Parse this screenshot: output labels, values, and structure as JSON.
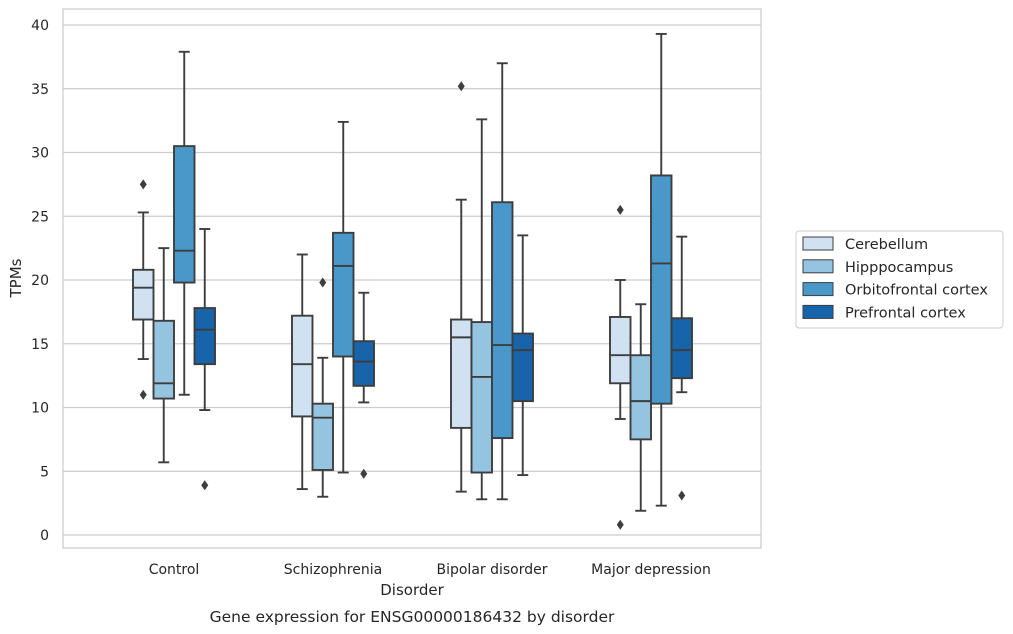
{
  "caption": "Gene expression for ENSG00000186432 by disorder",
  "chart_data": {
    "type": "box",
    "xlabel": "Disorder",
    "ylabel": "TPMs",
    "ylim": [
      -1,
      41
    ],
    "yticks": [
      0,
      5,
      10,
      15,
      20,
      25,
      30,
      35,
      40
    ],
    "grid": "horizontal",
    "legend_position": "right",
    "categories": [
      "Control",
      "Schizophrenia",
      "Bipolar disorder",
      "Major depression"
    ],
    "series": [
      {
        "name": "Cerebellum",
        "color": "#d0e1f2",
        "boxes": [
          {
            "whislo": 13.8,
            "q1": 16.9,
            "med": 19.4,
            "q3": 20.8,
            "whishi": 25.3,
            "fliers": [
              27.5,
              11.0
            ]
          },
          {
            "whislo": 3.6,
            "q1": 9.3,
            "med": 13.4,
            "q3": 17.2,
            "whishi": 22.0,
            "fliers": []
          },
          {
            "whislo": 3.4,
            "q1": 8.4,
            "med": 15.5,
            "q3": 16.9,
            "whishi": 26.3,
            "fliers": [
              35.2
            ]
          },
          {
            "whislo": 9.1,
            "q1": 11.9,
            "med": 14.1,
            "q3": 17.1,
            "whishi": 20.0,
            "fliers": [
              25.5,
              0.8
            ]
          }
        ]
      },
      {
        "name": "Hipppocampus",
        "color": "#94c4df",
        "boxes": [
          {
            "whislo": 5.7,
            "q1": 10.7,
            "med": 11.9,
            "q3": 16.8,
            "whishi": 22.5,
            "fliers": []
          },
          {
            "whislo": 3.0,
            "q1": 5.1,
            "med": 9.2,
            "q3": 10.3,
            "whishi": 13.9,
            "fliers": [
              19.8
            ]
          },
          {
            "whislo": 2.8,
            "q1": 4.9,
            "med": 12.4,
            "q3": 16.7,
            "whishi": 32.6,
            "fliers": []
          },
          {
            "whislo": 1.9,
            "q1": 7.5,
            "med": 10.5,
            "q3": 14.1,
            "whishi": 18.1,
            "fliers": []
          }
        ]
      },
      {
        "name": "Orbitofrontal cortex",
        "color": "#4a98c9",
        "boxes": [
          {
            "whislo": 11.0,
            "q1": 19.8,
            "med": 22.3,
            "q3": 30.5,
            "whishi": 37.9,
            "fliers": []
          },
          {
            "whislo": 4.9,
            "q1": 14.0,
            "med": 21.1,
            "q3": 23.7,
            "whishi": 32.4,
            "fliers": []
          },
          {
            "whislo": 2.8,
            "q1": 7.6,
            "med": 14.9,
            "q3": 26.1,
            "whishi": 37.0,
            "fliers": []
          },
          {
            "whislo": 2.3,
            "q1": 10.3,
            "med": 21.3,
            "q3": 28.2,
            "whishi": 39.3,
            "fliers": []
          }
        ]
      },
      {
        "name": "Prefrontal cortex",
        "color": "#1764ab",
        "boxes": [
          {
            "whislo": 9.8,
            "q1": 13.4,
            "med": 16.1,
            "q3": 17.8,
            "whishi": 24.0,
            "fliers": [
              3.9
            ]
          },
          {
            "whislo": 10.4,
            "q1": 11.7,
            "med": 13.6,
            "q3": 15.2,
            "whishi": 19.0,
            "fliers": [
              4.8
            ]
          },
          {
            "whislo": 4.7,
            "q1": 10.5,
            "med": 14.5,
            "q3": 15.8,
            "whishi": 23.5,
            "fliers": []
          },
          {
            "whislo": 11.2,
            "q1": 12.3,
            "med": 14.5,
            "q3": 17.0,
            "whishi": 23.4,
            "fliers": [
              3.1
            ]
          }
        ]
      }
    ]
  }
}
